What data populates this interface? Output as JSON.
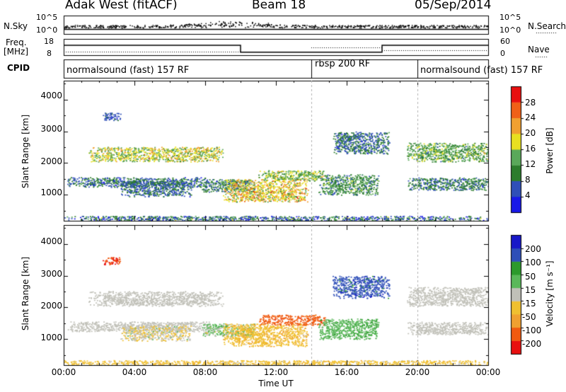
{
  "header": {
    "station": "Adak West (fitACF)",
    "beam": "Beam 18",
    "date": "05/Sep/2014"
  },
  "summary_panels": {
    "nsky": {
      "left_label": "N.Sky",
      "left_ticks": [
        "10^5",
        "10^0"
      ],
      "right_label": "N.Search",
      "right_ticks": [
        "10^5",
        "10^0"
      ]
    },
    "freq": {
      "left_label_1": "Freq.",
      "left_label_2": "[MHz]",
      "left_ticks": [
        "18",
        "8"
      ],
      "right_label": "Nave",
      "right_ticks": [
        "60",
        "0"
      ],
      "freq_steps": [
        {
          "start_h": 0,
          "end_h": 10,
          "mhz": 14.5
        },
        {
          "start_h": 10,
          "end_h": 18,
          "mhz": 10.3
        },
        {
          "start_h": 18,
          "end_h": 24,
          "mhz": 14.5
        }
      ]
    },
    "cpid": {
      "label": "CPID",
      "segments": [
        {
          "start_h": 0,
          "end_h": 14,
          "text": "normalsound (fast) 157 RF"
        },
        {
          "start_h": 14,
          "end_h": 20,
          "text": "rbsp 200 RF"
        },
        {
          "start_h": 20,
          "end_h": 24,
          "text": "normalsound (fast) 157 RF"
        }
      ]
    }
  },
  "chart_data": [
    {
      "type": "heatmap",
      "title": "",
      "xlabel": "Time UT",
      "ylabel": "Slant Range [km]",
      "xlim_hours": [
        0,
        24
      ],
      "x_ticks": [
        "00:00",
        "04:00",
        "08:00",
        "12:00",
        "16:00",
        "20:00",
        "00:00"
      ],
      "ylim": [
        180,
        4600
      ],
      "y_ticks": [
        1000,
        2000,
        3000,
        4000
      ],
      "colorbar": {
        "label": "Power [dB]",
        "levels": [
          0,
          4,
          8,
          12,
          16,
          20,
          24,
          28,
          32
        ],
        "tick_labels": [
          "4",
          "8",
          "12",
          "16",
          "20",
          "24",
          "28"
        ],
        "colors": [
          "#1818e8",
          "#2f4fb8",
          "#2c7c2c",
          "#5aa85a",
          "#e8e020",
          "#f0a030",
          "#f06018",
          "#e81010"
        ]
      },
      "echo_regions": [
        {
          "t0": 0.0,
          "t1": 24.0,
          "r0": 190,
          "r1": 340,
          "value": 8,
          "spread": 7
        },
        {
          "t0": 0.2,
          "t1": 8.2,
          "r0": 1250,
          "r1": 1560,
          "value": 8,
          "spread": 5
        },
        {
          "t0": 1.4,
          "t1": 9.0,
          "r0": 2050,
          "r1": 2520,
          "value": 17,
          "spread": 6
        },
        {
          "t0": 3.2,
          "t1": 7.2,
          "r0": 950,
          "r1": 1450,
          "value": 8,
          "spread": 4
        },
        {
          "t0": 7.8,
          "t1": 10.8,
          "r0": 1100,
          "r1": 1500,
          "value": 9,
          "spread": 4
        },
        {
          "t0": 9.0,
          "t1": 13.8,
          "r0": 780,
          "r1": 1500,
          "value": 19,
          "spread": 7
        },
        {
          "t0": 11.0,
          "t1": 14.8,
          "r0": 1450,
          "r1": 1780,
          "value": 15,
          "spread": 5
        },
        {
          "t0": 14.4,
          "t1": 17.8,
          "r0": 1000,
          "r1": 1650,
          "value": 11,
          "spread": 5
        },
        {
          "t0": 15.2,
          "t1": 18.4,
          "r0": 2300,
          "r1": 3000,
          "value": 8,
          "spread": 4
        },
        {
          "t0": 19.4,
          "t1": 24.0,
          "r0": 2050,
          "r1": 2650,
          "value": 13,
          "spread": 5
        },
        {
          "t0": 19.4,
          "t1": 24.0,
          "r0": 1150,
          "r1": 1550,
          "value": 9,
          "spread": 4
        },
        {
          "t0": 2.2,
          "t1": 3.2,
          "r0": 3350,
          "r1": 3600,
          "value": 6,
          "spread": 3
        }
      ]
    },
    {
      "type": "heatmap",
      "title": "",
      "xlabel": "Time UT",
      "ylabel": "Slant Range [km]",
      "xlim_hours": [
        0,
        24
      ],
      "x_ticks": [
        "00:00",
        "04:00",
        "08:00",
        "12:00",
        "16:00",
        "20:00",
        "00:00"
      ],
      "ylim": [
        180,
        4600
      ],
      "y_ticks": [
        1000,
        2000,
        3000,
        4000
      ],
      "colorbar": {
        "label": "Velocity [m s⁻¹]",
        "levels": [
          -300,
          -200,
          -100,
          -50,
          -15,
          15,
          50,
          100,
          200,
          300
        ],
        "tick_labels": [
          "-200",
          "-100",
          "-50",
          "-15",
          "15",
          "50",
          "100",
          "200"
        ],
        "colors": [
          "#e81010",
          "#f05a10",
          "#f0a030",
          "#f0c030",
          "#c0c0b8",
          "#5ab85a",
          "#2c9a2c",
          "#2f4fb8",
          "#1818c8"
        ]
      },
      "echo_regions": [
        {
          "t0": 0.0,
          "t1": 24.0,
          "r0": 190,
          "r1": 340,
          "value": -30,
          "spread": 20
        },
        {
          "t0": 0.2,
          "t1": 8.2,
          "r0": 1250,
          "r1": 1560,
          "value": 0,
          "spread": 10
        },
        {
          "t0": 1.4,
          "t1": 9.0,
          "r0": 2050,
          "r1": 2520,
          "value": 0,
          "spread": 8
        },
        {
          "t0": 3.2,
          "t1": 7.2,
          "r0": 950,
          "r1": 1450,
          "value": -10,
          "spread": 30
        },
        {
          "t0": 7.8,
          "t1": 10.8,
          "r0": 1100,
          "r1": 1500,
          "value": 20,
          "spread": 30
        },
        {
          "t0": 9.0,
          "t1": 13.8,
          "r0": 780,
          "r1": 1500,
          "value": -40,
          "spread": 20
        },
        {
          "t0": 11.0,
          "t1": 14.8,
          "r0": 1450,
          "r1": 1780,
          "value": -150,
          "spread": 40
        },
        {
          "t0": 14.4,
          "t1": 17.8,
          "r0": 1000,
          "r1": 1650,
          "value": 40,
          "spread": 20
        },
        {
          "t0": 15.2,
          "t1": 18.4,
          "r0": 2300,
          "r1": 3000,
          "value": 150,
          "spread": 60
        },
        {
          "t0": 19.4,
          "t1": 24.0,
          "r0": 2050,
          "r1": 2650,
          "value": 0,
          "spread": 8
        },
        {
          "t0": 19.4,
          "t1": 24.0,
          "r0": 1150,
          "r1": 1550,
          "value": 0,
          "spread": 8
        },
        {
          "t0": 2.2,
          "t1": 3.2,
          "r0": 3350,
          "r1": 3600,
          "value": -200,
          "spread": 40
        }
      ]
    }
  ]
}
